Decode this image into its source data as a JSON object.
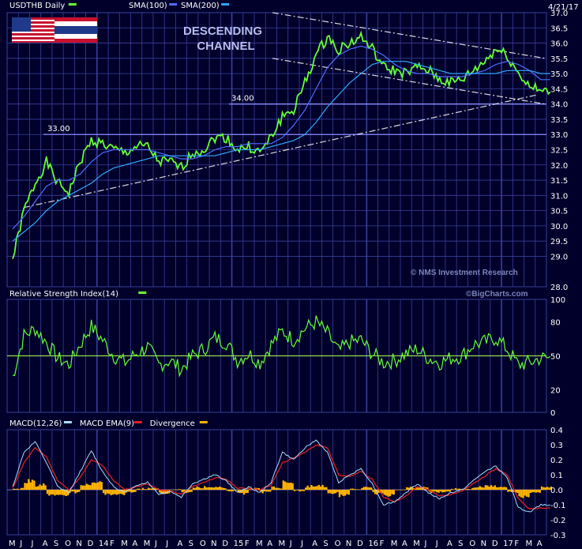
{
  "date": "4/21/17",
  "watermark": "© NMS Investment Research",
  "bigcharts": "©BigCharts.com",
  "annotation": {
    "channel_line1": "DESCENDING",
    "channel_line2": "CHANNEL"
  },
  "colors": {
    "background": "#00002b",
    "grid": "#3a3f9a",
    "price": "#66ff33",
    "sma100": "#4f6dff",
    "sma200": "#2fa8ff",
    "ref_line": "#8a8cff",
    "rsi": "#66ff33",
    "rsi_mid": "#aaff55",
    "macd": "#aaddff",
    "macd_ema": "#e02020",
    "divergence": "#ffb300",
    "trendline": "#ffffff"
  },
  "chart_data": [
    {
      "type": "line",
      "name": "price",
      "legend": [
        {
          "label": "USDTHB Daily",
          "color": "#66ff33"
        },
        {
          "label": "SMA(100)",
          "color": "#4f6dff"
        },
        {
          "label": "SMA(200)",
          "color": "#2fa8ff"
        }
      ],
      "ylim": [
        28.0,
        37.0
      ],
      "yticks": [
        "37.0",
        "36.5",
        "36.0",
        "35.5",
        "35.0",
        "34.5",
        "34.0",
        "33.5",
        "33.0",
        "32.5",
        "32.0",
        "31.5",
        "31.0",
        "30.5",
        "30.0",
        "29.5",
        "29.0",
        "28.0"
      ],
      "x": [
        "2013-05",
        "2013-06",
        "2013-07",
        "2013-08",
        "2013-09",
        "2013-10",
        "2013-11",
        "2013-12",
        "2014-01",
        "2014-02",
        "2014-03",
        "2014-04",
        "2014-05",
        "2014-06",
        "2014-07",
        "2014-08",
        "2014-09",
        "2014-10",
        "2014-11",
        "2014-12",
        "2015-01",
        "2015-02",
        "2015-03",
        "2015-04",
        "2015-05",
        "2015-06",
        "2015-07",
        "2015-08",
        "2015-09",
        "2015-10",
        "2015-11",
        "2015-12",
        "2016-01",
        "2016-02",
        "2016-03",
        "2016-04",
        "2016-05",
        "2016-06",
        "2016-07",
        "2016-08",
        "2016-09",
        "2016-10",
        "2016-11",
        "2016-12",
        "2017-01",
        "2017-02",
        "2017-03",
        "2017-04"
      ],
      "series": [
        {
          "name": "USDTHB Daily",
          "values": [
            28.9,
            30.5,
            31.4,
            32.1,
            31.4,
            31.1,
            32.1,
            32.8,
            32.7,
            32.5,
            32.4,
            32.6,
            32.6,
            32.1,
            32.1,
            31.9,
            32.4,
            32.5,
            32.9,
            32.9,
            32.5,
            32.6,
            32.4,
            32.9,
            33.6,
            33.8,
            34.7,
            35.6,
            36.2,
            35.8,
            36.0,
            36.2,
            35.8,
            35.2,
            35.1,
            35.0,
            35.2,
            35.1,
            34.8,
            34.7,
            34.8,
            35.1,
            35.4,
            35.8,
            35.6,
            35.0,
            34.6,
            34.4
          ]
        },
        {
          "name": "SMA(100)",
          "values": [
            29.9,
            30.3,
            30.8,
            31.3,
            31.5,
            31.5,
            31.7,
            32.1,
            32.4,
            32.5,
            32.5,
            32.5,
            32.5,
            32.4,
            32.3,
            32.2,
            32.2,
            32.3,
            32.5,
            32.6,
            32.6,
            32.7,
            32.7,
            32.7,
            32.9,
            33.3,
            33.8,
            34.5,
            35.2,
            35.6,
            35.8,
            35.9,
            35.8,
            35.6,
            35.3,
            35.1,
            35.0,
            35.0,
            34.9,
            34.9,
            34.9,
            35.0,
            35.1,
            35.3,
            35.4,
            35.3,
            35.1,
            34.8
          ]
        },
        {
          "name": "SMA(200)",
          "values": [
            29.5,
            29.8,
            30.1,
            30.5,
            30.8,
            31.0,
            31.2,
            31.4,
            31.7,
            31.9,
            32.0,
            32.1,
            32.2,
            32.3,
            32.3,
            32.3,
            32.3,
            32.3,
            32.3,
            32.4,
            32.5,
            32.5,
            32.5,
            32.6,
            32.7,
            32.8,
            33.0,
            33.4,
            33.9,
            34.3,
            34.7,
            35.0,
            35.3,
            35.4,
            35.4,
            35.4,
            35.3,
            35.2,
            35.1,
            35.0,
            35.0,
            35.0,
            35.0,
            35.0,
            35.1,
            35.1,
            35.1,
            35.0
          ]
        }
      ],
      "reference_lines": [
        {
          "label": "34.00",
          "value": 34.0
        },
        {
          "label": "33.00",
          "value": 33.0
        }
      ]
    },
    {
      "type": "line",
      "name": "rsi",
      "legend": [
        {
          "label": "Relative Strength Index(14)",
          "color": "#66ff33"
        }
      ],
      "ylim": [
        0,
        100
      ],
      "yticks": [
        "100",
        "80",
        "50",
        "20",
        "0"
      ],
      "midline": 50,
      "series": [
        {
          "name": "Relative Strength Index(14)",
          "values": [
            32,
            68,
            74,
            62,
            48,
            42,
            60,
            76,
            64,
            50,
            44,
            52,
            58,
            42,
            46,
            38,
            50,
            56,
            66,
            62,
            46,
            52,
            44,
            60,
            72,
            64,
            74,
            80,
            70,
            54,
            62,
            64,
            52,
            44,
            46,
            52,
            56,
            48,
            44,
            48,
            50,
            60,
            62,
            66,
            56,
            42,
            44,
            48
          ]
        }
      ]
    },
    {
      "type": "line",
      "name": "macd",
      "legend": [
        {
          "label": "MACD(12,26)",
          "color": "#aaddff"
        },
        {
          "label": "MACD EMA(9)",
          "color": "#e02020"
        },
        {
          "label": "Divergence",
          "color": "#ffb300"
        }
      ],
      "ylim": [
        -0.3,
        0.4
      ],
      "yticks": [
        "0.4",
        "0.3",
        "0.2",
        "0.1",
        "0.0",
        "-0.1",
        "-0.2",
        "-0.3"
      ],
      "series": [
        {
          "name": "MACD(12,26)",
          "values": [
            0.02,
            0.25,
            0.32,
            0.18,
            0.02,
            -0.02,
            0.12,
            0.26,
            0.12,
            0.02,
            -0.02,
            0.03,
            0.05,
            -0.03,
            -0.01,
            -0.05,
            0.04,
            0.07,
            0.1,
            0.06,
            -0.02,
            0.02,
            -0.02,
            0.05,
            0.25,
            0.2,
            0.28,
            0.33,
            0.25,
            0.05,
            0.1,
            0.14,
            0.04,
            -0.1,
            -0.08,
            -0.02,
            0.04,
            -0.02,
            -0.06,
            -0.02,
            0.0,
            0.06,
            0.12,
            0.16,
            0.08,
            -0.12,
            -0.15,
            -0.1
          ]
        },
        {
          "name": "MACD EMA(9)",
          "values": [
            0.01,
            0.18,
            0.28,
            0.22,
            0.06,
            0.0,
            0.08,
            0.2,
            0.16,
            0.06,
            0.0,
            0.02,
            0.04,
            0.0,
            -0.01,
            -0.03,
            0.02,
            0.05,
            0.08,
            0.07,
            0.01,
            0.01,
            0.0,
            0.03,
            0.18,
            0.21,
            0.25,
            0.3,
            0.28,
            0.1,
            0.09,
            0.12,
            0.07,
            -0.05,
            -0.08,
            -0.04,
            0.02,
            0.0,
            -0.04,
            -0.03,
            -0.01,
            0.04,
            0.09,
            0.14,
            0.1,
            -0.06,
            -0.13,
            -0.12
          ]
        }
      ],
      "bars": {
        "name": "Divergence",
        "values": [
          0.01,
          0.07,
          0.04,
          -0.04,
          -0.04,
          -0.02,
          0.04,
          0.06,
          -0.04,
          -0.04,
          -0.02,
          0.01,
          0.01,
          -0.03,
          0.0,
          -0.02,
          0.02,
          0.02,
          0.02,
          -0.01,
          -0.03,
          0.01,
          -0.02,
          0.02,
          0.07,
          -0.01,
          0.03,
          0.03,
          -0.03,
          -0.05,
          0.01,
          0.02,
          -0.03,
          -0.05,
          0.0,
          0.02,
          0.02,
          -0.02,
          -0.02,
          0.01,
          0.01,
          0.02,
          0.03,
          0.02,
          -0.02,
          -0.06,
          -0.02,
          0.02
        ]
      },
      "xticks": [
        "M",
        "J",
        "J",
        "A",
        "S",
        "O",
        "N",
        "D",
        "14",
        "F",
        "M",
        "A",
        "M",
        "J",
        "J",
        "A",
        "S",
        "O",
        "N",
        "D",
        "15",
        "F",
        "M",
        "A",
        "M",
        "J",
        "J",
        "A",
        "S",
        "O",
        "N",
        "D",
        "16",
        "F",
        "M",
        "A",
        "M",
        "J",
        "J",
        "A",
        "S",
        "O",
        "N",
        "D",
        "17",
        "F",
        "M",
        "A"
      ]
    }
  ]
}
